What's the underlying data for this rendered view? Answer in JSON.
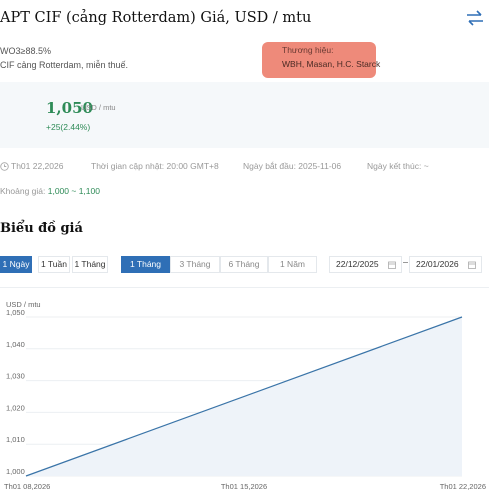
{
  "header": {
    "title": "APT CIF (cảng Rotterdam) Giá, USD / mtu",
    "swap_icon": "swap-arrows-icon"
  },
  "specs": {
    "line1": "WO3≥88.5%",
    "line2": "CIF cảng Rotterdam, miễn thuế."
  },
  "brand": {
    "label": "Thương hiệu:",
    "value": "WBH, Masan, H.C. Starck"
  },
  "price": {
    "value": "1,050",
    "unit": "USD / mtu",
    "change": "+25(2.44%)"
  },
  "meta": {
    "date": "Th01 22,2026",
    "updated": "Thời gian cập nhật: 20:00 GMT+8",
    "start": "Ngày bắt đầu: 2025-11-06",
    "end": "Ngày kết thúc: ~"
  },
  "range": {
    "label": "Khoảng giá: ",
    "value": "1,000 ~ 1,100"
  },
  "chart_section": {
    "title": "Biểu đồ giá",
    "interval_buttons": [
      "1 Ngày",
      "1 Tuần",
      "1 Tháng"
    ],
    "period_buttons": [
      "1 Tháng",
      "3 Tháng",
      "6 Tháng",
      "1 Năm"
    ],
    "date_from": "22/12/2025",
    "date_to": "22/01/2026"
  },
  "colors": {
    "accent": "#2f6fb6",
    "positive": "#2e8b57",
    "highlight": "#ee8a7a"
  },
  "chart_data": {
    "type": "area",
    "ylabel": "USD / mtu",
    "x": [
      "Th01 08,2026",
      "Th01 22,2026"
    ],
    "xticks": [
      "Th01 08,2026",
      "Th01 15,2026",
      "Th01 22,2026"
    ],
    "yticks": [
      "1,000",
      "1,010",
      "1,020",
      "1,030",
      "1,040",
      "1,050"
    ],
    "ylim": [
      1000,
      1050
    ],
    "grid": true,
    "series": [
      {
        "values": [
          1000,
          1050
        ]
      }
    ]
  }
}
